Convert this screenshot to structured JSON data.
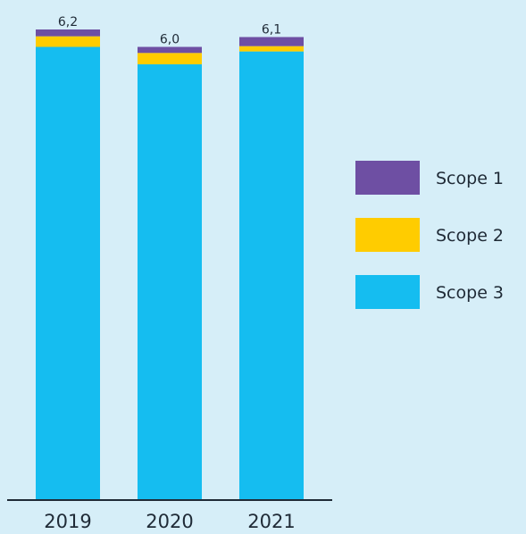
{
  "chart_data": {
    "type": "bar",
    "stacked": true,
    "categories": [
      "2019",
      "2020",
      "2021"
    ],
    "series": [
      {
        "name": "Scope 3",
        "values": [
          5.97,
          5.74,
          5.91
        ],
        "color": "#15bdf0"
      },
      {
        "name": "Scope 2",
        "values": [
          0.14,
          0.15,
          0.07
        ],
        "color": "#ffcc00"
      },
      {
        "name": "Scope 1",
        "values": [
          0.09,
          0.08,
          0.12
        ],
        "color": "#6e4fa3"
      }
    ],
    "totals": [
      "6,2",
      "6,0",
      "6,1"
    ],
    "legend_order": [
      "Scope 1",
      "Scope 2",
      "Scope 3"
    ],
    "legend_position": "right",
    "title": "",
    "xlabel": "",
    "ylabel": "",
    "ylim": [
      0,
      6.2
    ],
    "grid": false,
    "axis_color": "#1f2a36"
  }
}
